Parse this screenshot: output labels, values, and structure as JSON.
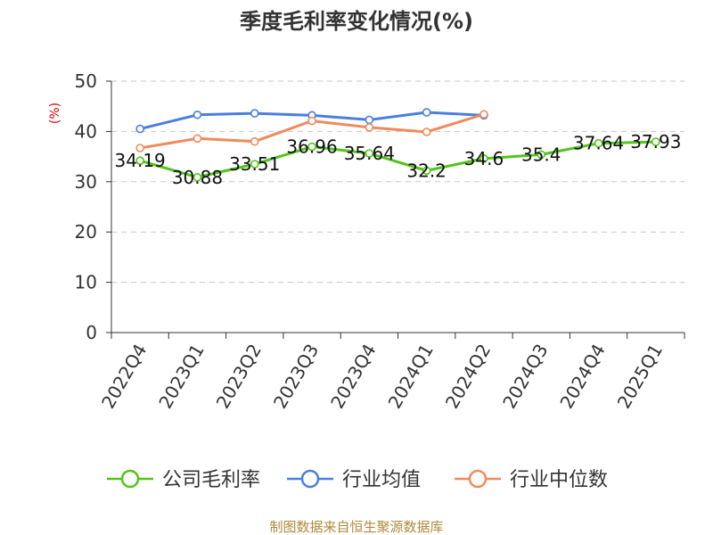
{
  "source_text": "制图数据来自恒生聚源数据库",
  "chart_data": {
    "type": "line",
    "title": "季度毛利率变化情况(%)",
    "ylabel": "(%)",
    "xlabel": "",
    "ylim": [
      0,
      50
    ],
    "yticks": [
      0,
      10,
      20,
      30,
      40,
      50
    ],
    "grid": true,
    "legend_position": "bottom",
    "categories": [
      "2022Q4",
      "2023Q1",
      "2023Q2",
      "2023Q3",
      "2023Q4",
      "2024Q1",
      "2024Q2",
      "2024Q3",
      "2024Q4",
      "2025Q1"
    ],
    "series": [
      {
        "name": "公司毛利率",
        "color": "#52c41a",
        "values": [
          34.19,
          30.88,
          33.51,
          36.96,
          35.64,
          32.2,
          34.6,
          35.4,
          37.64,
          37.93
        ],
        "labels": [
          "34.19",
          "30.88",
          "33.51",
          "36.96",
          "35.64",
          "32.2",
          "34.6",
          "35.4",
          "37.64",
          "37.93"
        ]
      },
      {
        "name": "行业均值",
        "color": "#4a7fe0",
        "values": [
          40.5,
          43.3,
          43.6,
          43.2,
          42.3,
          43.8,
          43.2,
          null,
          null,
          null
        ]
      },
      {
        "name": "行业中位数",
        "color": "#f08a5d",
        "values": [
          36.7,
          38.6,
          38.0,
          42.1,
          40.8,
          39.9,
          43.4,
          null,
          null,
          null
        ]
      }
    ]
  }
}
